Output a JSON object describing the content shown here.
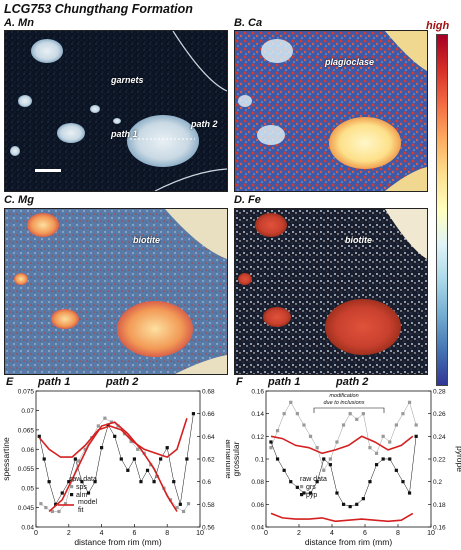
{
  "figure": {
    "title": "LCG753 Chungthang Formation",
    "colorbar_high": "high"
  },
  "maps": [
    {
      "label": "A. Mn",
      "annotations": [
        "garnets",
        "path 1",
        "path 2"
      ],
      "palette": "dark-blue"
    },
    {
      "label": "B. Ca",
      "annotations": [
        "plagioclase"
      ],
      "palette": "red-blue"
    },
    {
      "label": "C. Mg",
      "annotations": [
        "biotite"
      ],
      "palette": "blue-orange"
    },
    {
      "label": "D. Fe",
      "annotations": [
        "biotite"
      ],
      "palette": "dark-red"
    }
  ],
  "colors": {
    "colorbar": [
      "#a50026",
      "#d73027",
      "#f46d43",
      "#fdae61",
      "#fee090",
      "#ffffbf",
      "#e0f3f8",
      "#abd9e9",
      "#74add1",
      "#4575b4",
      "#313695"
    ],
    "model_fit": "#d42020",
    "raw_data": "#111111",
    "raw_data_alt": "#999999"
  },
  "chart_data": [
    {
      "type": "scatter",
      "panel_label": "E",
      "path_labels": [
        "path 1",
        "path 2"
      ],
      "xlabel": "distance from rim (mm)",
      "ylabel": "spessartine",
      "y2label": "almandine",
      "xlim": [
        0,
        10
      ],
      "ylim": [
        0.04,
        0.075
      ],
      "y2lim": [
        0.56,
        0.68
      ],
      "xticks": [
        0,
        2,
        4,
        6,
        8,
        10
      ],
      "yticks": [
        0.04,
        0.045,
        0.05,
        0.055,
        0.06,
        0.065,
        0.07,
        0.075
      ],
      "y2ticks": [
        0.56,
        0.58,
        0.6,
        0.62,
        0.64,
        0.66,
        0.68
      ],
      "legend": {
        "title": "raw data",
        "entries": [
          "sps",
          "alm"
        ],
        "model_label": "model",
        "fit_label": "fit"
      },
      "series": [
        {
          "name": "sps",
          "axis": "left",
          "style": "gray-square",
          "x": [
            0.3,
            0.6,
            1.0,
            1.4,
            1.8,
            2.2,
            2.6,
            3.0,
            3.4,
            3.8,
            4.2,
            4.6,
            5.0,
            5.4,
            5.8,
            6.2,
            6.6,
            7.0,
            7.4,
            7.8,
            8.2,
            8.6,
            9.0,
            9.3
          ],
          "y": [
            0.046,
            0.045,
            0.044,
            0.044,
            0.046,
            0.052,
            0.057,
            0.06,
            0.063,
            0.066,
            0.068,
            0.067,
            0.066,
            0.064,
            0.062,
            0.06,
            0.059,
            0.056,
            0.053,
            0.05,
            0.047,
            0.045,
            0.044,
            0.046
          ]
        },
        {
          "name": "alm",
          "axis": "right",
          "style": "black-square",
          "x": [
            0.2,
            0.5,
            0.8,
            1.2,
            1.6,
            2.0,
            2.4,
            2.8,
            3.2,
            3.6,
            4.0,
            4.4,
            4.8,
            5.2,
            5.6,
            6.0,
            6.4,
            6.8,
            7.2,
            7.6,
            8.0,
            8.4,
            8.8,
            9.2,
            9.6
          ],
          "y": [
            0.64,
            0.62,
            0.6,
            0.58,
            0.59,
            0.6,
            0.62,
            0.6,
            0.59,
            0.6,
            0.63,
            0.65,
            0.64,
            0.62,
            0.61,
            0.62,
            0.6,
            0.61,
            0.6,
            0.62,
            0.63,
            0.6,
            0.58,
            0.62,
            0.66
          ]
        },
        {
          "name": "model fit",
          "axis": "left",
          "style": "red-line",
          "x": [
            0.2,
            0.8,
            1.5,
            2.2,
            3.0,
            3.8,
            4.5,
            5.2,
            5.9,
            6.6,
            7.3,
            8.0,
            8.6,
            9.2
          ],
          "y": [
            0.063,
            0.06,
            0.058,
            0.058,
            0.061,
            0.065,
            0.066,
            0.065,
            0.062,
            0.06,
            0.059,
            0.058,
            0.06,
            0.068
          ]
        },
        {
          "name": "model fit (sps)",
          "axis": "left",
          "style": "red-line",
          "x": [
            0.8,
            1.6,
            2.4,
            3.2,
            4.0,
            4.8,
            5.6,
            6.4,
            7.2,
            8.0,
            8.6
          ],
          "y": [
            0.044,
            0.047,
            0.054,
            0.061,
            0.066,
            0.067,
            0.064,
            0.06,
            0.055,
            0.048,
            0.044
          ]
        }
      ]
    },
    {
      "type": "scatter",
      "panel_label": "F",
      "path_labels": [
        "path 1",
        "path 2"
      ],
      "annotation": "modification due to inclusions",
      "xlabel": "distance from rim (mm)",
      "ylabel": "grossular",
      "y2label": "pyrope",
      "xlim": [
        0,
        10
      ],
      "ylim": [
        0.04,
        0.16
      ],
      "y2lim": [
        0.16,
        0.28
      ],
      "xticks": [
        0,
        2,
        4,
        6,
        8,
        10
      ],
      "yticks": [
        0.04,
        0.06,
        0.08,
        0.1,
        0.12,
        0.14,
        0.16
      ],
      "y2ticks": [
        0.16,
        0.18,
        0.2,
        0.22,
        0.24,
        0.26,
        0.28
      ],
      "legend": {
        "title": "raw data",
        "entries": [
          "grs",
          "pyp"
        ]
      },
      "series": [
        {
          "name": "grs",
          "axis": "left",
          "style": "gray-square",
          "x": [
            0.3,
            0.7,
            1.1,
            1.5,
            1.9,
            2.3,
            2.7,
            3.1,
            3.5,
            3.9,
            4.3,
            4.7,
            5.1,
            5.5,
            5.9,
            6.3,
            6.7,
            7.1,
            7.5,
            7.9,
            8.3,
            8.7,
            9.1
          ],
          "y": [
            0.11,
            0.125,
            0.14,
            0.15,
            0.14,
            0.13,
            0.12,
            0.11,
            0.09,
            0.1,
            0.115,
            0.13,
            0.14,
            0.135,
            0.14,
            0.11,
            0.105,
            0.12,
            0.115,
            0.13,
            0.14,
            0.15,
            0.13
          ]
        },
        {
          "name": "pyp",
          "axis": "right",
          "style": "black-square",
          "x": [
            0.3,
            0.7,
            1.1,
            1.5,
            1.9,
            2.3,
            2.7,
            3.1,
            3.5,
            3.9,
            4.3,
            4.7,
            5.1,
            5.5,
            5.9,
            6.3,
            6.7,
            7.1,
            7.5,
            7.9,
            8.3,
            8.7,
            9.1
          ],
          "y": [
            0.235,
            0.22,
            0.21,
            0.2,
            0.195,
            0.19,
            0.19,
            0.2,
            0.22,
            0.215,
            0.19,
            0.18,
            0.178,
            0.18,
            0.185,
            0.2,
            0.215,
            0.22,
            0.22,
            0.21,
            0.2,
            0.19,
            0.24
          ]
        },
        {
          "name": "model fit (grs)",
          "axis": "left",
          "style": "red-line",
          "x": [
            0.3,
            1.0,
            1.8,
            2.6,
            3.4,
            4.2,
            5.0,
            5.8,
            6.6,
            7.4,
            8.2,
            8.9
          ],
          "y": [
            0.12,
            0.118,
            0.112,
            0.11,
            0.105,
            0.108,
            0.112,
            0.12,
            0.115,
            0.108,
            0.112,
            0.12
          ]
        },
        {
          "name": "model fit (pyp)",
          "axis": "right",
          "style": "red-line",
          "x": [
            0.3,
            1.0,
            1.8,
            2.6,
            3.4,
            4.2,
            5.0,
            5.8,
            6.6,
            7.4,
            8.2,
            8.9
          ],
          "y": [
            0.172,
            0.168,
            0.167,
            0.167,
            0.168,
            0.165,
            0.166,
            0.167,
            0.166,
            0.165,
            0.166,
            0.172
          ]
        }
      ]
    }
  ]
}
